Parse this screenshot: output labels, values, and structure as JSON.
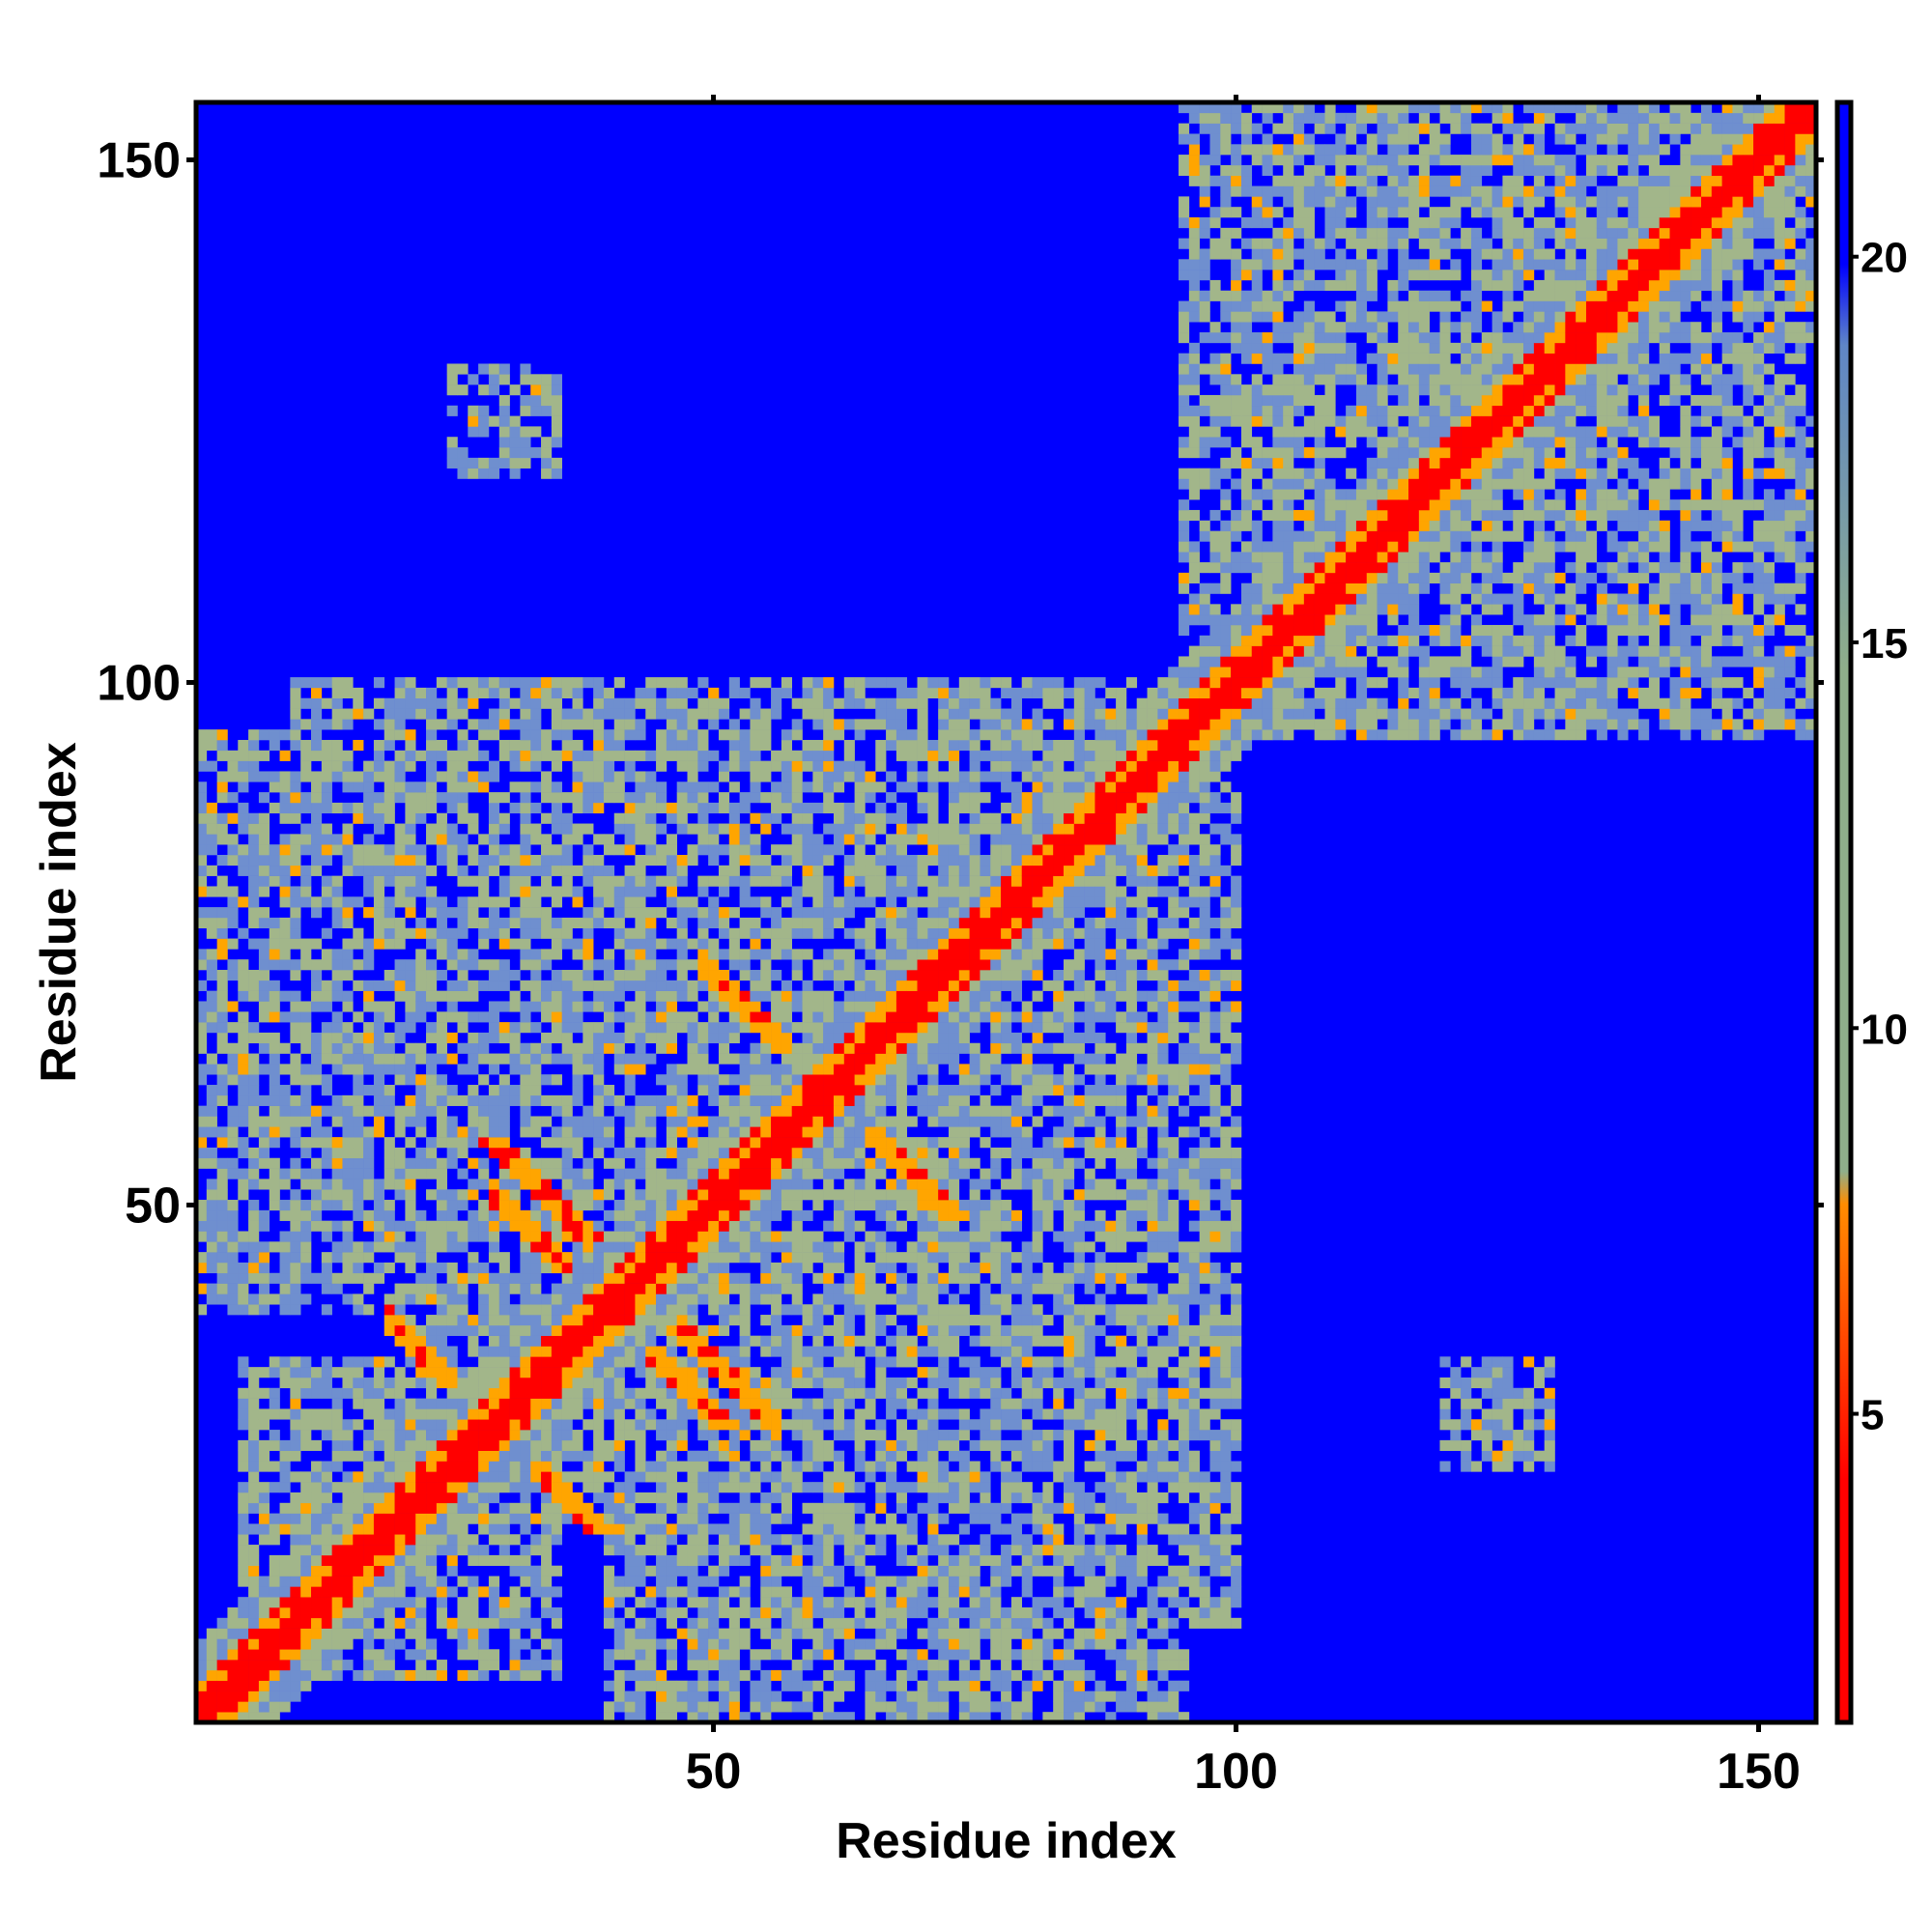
{
  "chart_data": {
    "type": "heatmap",
    "title": "",
    "xlabel": "Residue index",
    "ylabel": "Residue index",
    "xlim": [
      1,
      155
    ],
    "ylim": [
      1,
      155
    ],
    "x_ticks": [
      50,
      100,
      150
    ],
    "y_ticks": [
      50,
      100,
      150
    ],
    "colorbar": {
      "ticks": [
        5,
        10,
        15,
        20
      ],
      "range": [
        1,
        22
      ],
      "colors": [
        "#ff0000",
        "#ff8c00",
        "#8fae8a",
        "#5f86c6",
        "#0000ff"
      ]
    },
    "grid": false,
    "cell_colors": {
      "contact_close": "#ff0000",
      "contact_near": "#ffa500",
      "contact_mid": "#a2b68a",
      "contact_far": "#6f8fcf",
      "no_contact": "#0000ff"
    },
    "structure": {
      "diagonal_band": "residue i vs i, distance < 5",
      "beta_sheet_antiparallel": [
        {
          "x": [
            30,
            38
          ],
          "y": [
            50,
            42
          ]
        },
        {
          "x": [
            20,
            30
          ],
          "y": [
            38,
            28
          ]
        },
        {
          "x": [
            50,
            60
          ],
          "y": [
            72,
            62
          ]
        },
        {
          "x": [
            45,
            55
          ],
          "y": [
            40,
            30
          ]
        }
      ]
    }
  }
}
